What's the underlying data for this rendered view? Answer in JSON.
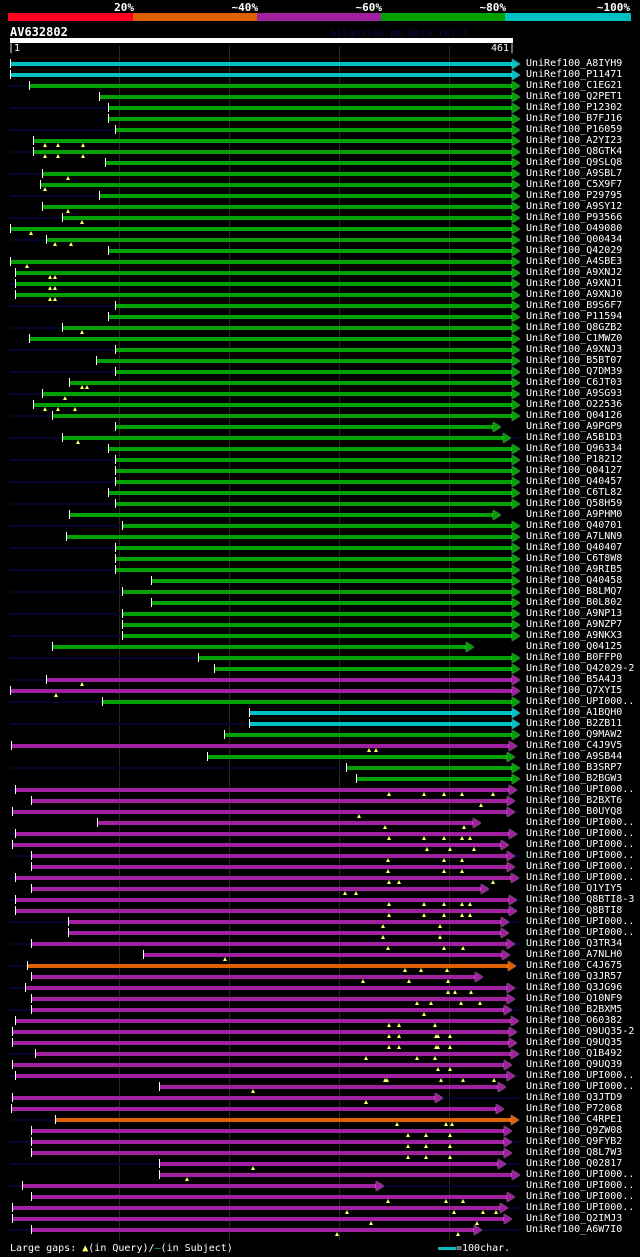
{
  "header": {
    "percent_labels": [
      "20%",
      "~40%",
      "~60%",
      "~80%",
      "~100%"
    ],
    "percent_colors": [
      "#ff0020",
      "#e06000",
      "#a020a0",
      "#00a000",
      "#00c0c0"
    ],
    "query_name": "AV632802",
    "version_text": "AlignView.pm Beta rel.7",
    "start_tick": "|1",
    "end_tick": "461|"
  },
  "query_length": 461,
  "colors": {
    "c": "#00c0c0",
    "g": "#00a000",
    "m": "#a020a0",
    "o": "#e06000",
    "guide": "#050530",
    "gap": "#ffff66"
  },
  "hits": [
    [
      "UniRef100_A8IYH9",
      "c",
      1,
      461,
      []
    ],
    [
      "UniRef100_P11471",
      "c",
      1,
      461,
      []
    ],
    [
      "UniRef100_C1EG21",
      "g",
      18,
      461,
      []
    ],
    [
      "UniRef100_Q2PET1",
      "g",
      82,
      461,
      []
    ],
    [
      "UniRef100_P12302",
      "g",
      91,
      461,
      []
    ],
    [
      "UniRef100_B7FJ16",
      "g",
      91,
      461,
      []
    ],
    [
      "UniRef100_P16059",
      "g",
      97,
      461,
      []
    ],
    [
      "UniRef100_A2YI23",
      "g",
      22,
      461,
      [
        33,
        45,
        68
      ]
    ],
    [
      "UniRef100_Q8GTK4",
      "g",
      22,
      461,
      [
        33,
        45,
        68
      ]
    ],
    [
      "UniRef100_Q9SLQ8",
      "g",
      88,
      461,
      []
    ],
    [
      "UniRef100_A9SBL7",
      "g",
      30,
      461,
      [
        54
      ]
    ],
    [
      "UniRef100_C5X9F7",
      "g",
      28,
      461,
      [
        33
      ]
    ],
    [
      "UniRef100_P29795",
      "g",
      82,
      461,
      []
    ],
    [
      "UniRef100_A9SY12",
      "g",
      30,
      461,
      [
        54
      ]
    ],
    [
      "UniRef100_P93566",
      "g",
      49,
      461,
      [
        67
      ]
    ],
    [
      "UniRef100_O49080",
      "g",
      1,
      461,
      [
        20
      ]
    ],
    [
      "UniRef100_Q00434",
      "g",
      34,
      461,
      [
        42,
        57
      ]
    ],
    [
      "UniRef100_Q42029",
      "g",
      91,
      461,
      []
    ],
    [
      "UniRef100_A4SBE3",
      "g",
      1,
      461,
      [
        17
      ]
    ],
    [
      "UniRef100_A9XNJ2",
      "g",
      6,
      461,
      [
        38,
        42
      ]
    ],
    [
      "UniRef100_A9XNJ1",
      "g",
      6,
      461,
      [
        38,
        42
      ]
    ],
    [
      "UniRef100_A9XNJ0",
      "g",
      6,
      461,
      [
        38,
        42
      ]
    ],
    [
      "UniRef100_B9S6F7",
      "g",
      97,
      461,
      []
    ],
    [
      "UniRef100_P11594",
      "g",
      91,
      461,
      []
    ],
    [
      "UniRef100_Q8GZB2",
      "g",
      49,
      461,
      [
        67
      ]
    ],
    [
      "UniRef100_C1MWZ0",
      "g",
      18,
      461,
      []
    ],
    [
      "UniRef100_A9XNJ3",
      "g",
      97,
      461,
      []
    ],
    [
      "UniRef100_B5BT07",
      "g",
      80,
      461,
      []
    ],
    [
      "UniRef100_Q7DM39",
      "g",
      97,
      461,
      []
    ],
    [
      "UniRef100_C6JT03",
      "g",
      55,
      461,
      [
        67,
        71
      ]
    ],
    [
      "UniRef100_A9SG93",
      "g",
      30,
      461,
      [
        51
      ]
    ],
    [
      "UniRef100_O22536",
      "g",
      22,
      461,
      [
        33,
        45,
        60
      ]
    ],
    [
      "UniRef100_Q04126",
      "g",
      39,
      461,
      []
    ],
    [
      "UniRef100_A9PGP9",
      "g",
      97,
      444,
      []
    ],
    [
      "UniRef100_A5B1D3",
      "g",
      49,
      453,
      [
        63
      ]
    ],
    [
      "UniRef100_Q96334",
      "g",
      91,
      461,
      []
    ],
    [
      "UniRef100_P18212",
      "g",
      97,
      461,
      []
    ],
    [
      "UniRef100_Q04127",
      "g",
      97,
      461,
      []
    ],
    [
      "UniRef100_Q40457",
      "g",
      97,
      461,
      []
    ],
    [
      "UniRef100_C6TL82",
      "g",
      91,
      461,
      []
    ],
    [
      "UniRef100_Q58H59",
      "g",
      97,
      461,
      []
    ],
    [
      "UniRef100_A9PHM0",
      "g",
      55,
      444,
      []
    ],
    [
      "UniRef100_Q40701",
      "g",
      103,
      461,
      []
    ],
    [
      "UniRef100_A7LNN9",
      "g",
      52,
      461,
      []
    ],
    [
      "UniRef100_Q40407",
      "g",
      97,
      461,
      []
    ],
    [
      "UniRef100_C6T8W8",
      "g",
      97,
      461,
      []
    ],
    [
      "UniRef100_A9RIB5",
      "g",
      97,
      461,
      []
    ],
    [
      "UniRef100_Q40458",
      "g",
      130,
      461,
      []
    ],
    [
      "UniRef100_B8LMQ7",
      "g",
      103,
      461,
      []
    ],
    [
      "UniRef100_B0L802",
      "g",
      130,
      461,
      []
    ],
    [
      "UniRef100_A9NP13",
      "g",
      103,
      461,
      []
    ],
    [
      "UniRef100_A9NZP7",
      "g",
      103,
      461,
      []
    ],
    [
      "UniRef100_A9NKX3",
      "g",
      103,
      461,
      []
    ],
    [
      "UniRef100_Q04125",
      "g",
      39,
      419,
      []
    ],
    [
      "UniRef100_B0FFP0",
      "g",
      173,
      461,
      []
    ],
    [
      "UniRef100_Q42029-2",
      "g",
      188,
      461,
      []
    ],
    [
      "UniRef100_B5A4J3",
      "m",
      34,
      461,
      [
        67
      ]
    ],
    [
      "UniRef100_Q7XYI5",
      "m",
      1,
      461,
      [
        43
      ]
    ],
    [
      "UniRef100_UPI000..",
      "g",
      85,
      461,
      []
    ],
    [
      "UniRef100_A1BQH0",
      "c",
      220,
      461,
      []
    ],
    [
      "UniRef100_B2ZB11",
      "c",
      220,
      461,
      []
    ],
    [
      "UniRef100_Q9MAW2",
      "g",
      197,
      461,
      []
    ],
    [
      "UniRef100_C4J9V5",
      "m",
      2,
      458,
      [
        329,
        336
      ]
    ],
    [
      "UniRef100_A9SB44",
      "g",
      181,
      456,
      []
    ],
    [
      "UniRef100_B3SRP7",
      "g",
      308,
      461,
      []
    ],
    [
      "UniRef100_B2BGW3",
      "g",
      317,
      461,
      []
    ],
    [
      "UniRef100_UPI000..",
      "m",
      6,
      458,
      [
        348,
        380,
        398,
        414,
        443
      ]
    ],
    [
      "UniRef100_B2BXT6",
      "m",
      20,
      456,
      [
        432
      ]
    ],
    [
      "UniRef100_B0UYQ8",
      "m",
      3,
      456,
      [
        320
      ]
    ],
    [
      "UniRef100_UPI000..",
      "m",
      81,
      425,
      [
        344,
        416
      ]
    ],
    [
      "UniRef100_UPI000..",
      "m",
      6,
      458,
      [
        348,
        380,
        398,
        414,
        422
      ]
    ],
    [
      "UniRef100_UPI000..",
      "m",
      3,
      451,
      [
        382,
        403,
        425
      ]
    ],
    [
      "UniRef100_UPI000..",
      "m",
      20,
      456,
      [
        347,
        398,
        414
      ]
    ],
    [
      "UniRef100_UPI000..",
      "m",
      20,
      456,
      [
        347,
        398,
        414
      ]
    ],
    [
      "UniRef100_UPI000..",
      "m",
      6,
      460,
      [
        348,
        357,
        443
      ]
    ],
    [
      "UniRef100_Q1YIY5",
      "m",
      20,
      433,
      [
        307,
        317
      ]
    ],
    [
      "UniRef100_Q8BTI8-3",
      "m",
      6,
      458,
      [
        348,
        380,
        398,
        414,
        422
      ]
    ],
    [
      "UniRef100_Q8BTI8",
      "m",
      6,
      458,
      [
        348,
        380,
        398,
        414,
        422
      ]
    ],
    [
      "UniRef100_UPI000..",
      "m",
      54,
      451,
      [
        342,
        394
      ]
    ],
    [
      "UniRef100_UPI000..",
      "m",
      54,
      451,
      [
        342,
        394
      ]
    ],
    [
      "UniRef100_Q3TR34",
      "m",
      20,
      456,
      [
        347,
        398,
        415
      ]
    ],
    [
      "UniRef100_A7NLH0",
      "m",
      123,
      452,
      [
        198
      ]
    ],
    [
      "UniRef100_C4J675",
      "o",
      17,
      457,
      [
        362,
        377,
        401
      ]
    ],
    [
      "UniRef100_Q3JR57",
      "m",
      20,
      427,
      [
        324,
        366,
        402
      ]
    ],
    [
      "UniRef100_Q3JG96",
      "m",
      15,
      456,
      [
        402,
        408,
        423
      ]
    ],
    [
      "UniRef100_Q10NF9",
      "m",
      20,
      456,
      [
        373,
        386,
        413,
        431
      ]
    ],
    [
      "UniRef100_B2BXM5",
      "m",
      20,
      454,
      [
        380
      ]
    ],
    [
      "UniRef100_O60382",
      "m",
      6,
      460,
      [
        348,
        357,
        390
      ]
    ],
    [
      "UniRef100_Q9UQ35-2",
      "m",
      3,
      458,
      [
        348,
        357,
        391,
        392,
        403
      ]
    ],
    [
      "UniRef100_Q9UQ35",
      "m",
      3,
      458,
      [
        348,
        357,
        391,
        392,
        403
      ]
    ],
    [
      "UniRef100_Q1B492",
      "m",
      24,
      460,
      [
        327,
        373,
        390
      ]
    ],
    [
      "UniRef100_Q9UQ39",
      "m",
      3,
      454,
      [
        392,
        403
      ]
    ],
    [
      "UniRef100_UPI000..",
      "m",
      6,
      456,
      [
        344,
        346,
        395,
        415,
        444
      ]
    ],
    [
      "UniRef100_UPI000..",
      "m",
      137,
      448,
      [
        223
      ]
    ],
    [
      "UniRef100_Q3JTD9",
      "m",
      3,
      391,
      [
        327
      ]
    ],
    [
      "UniRef100_P72068",
      "m",
      2,
      446,
      []
    ],
    [
      "UniRef100_C4RPE1",
      "o",
      42,
      460,
      [
        355,
        400,
        405
      ]
    ],
    [
      "UniRef100_Q9ZW08",
      "m",
      20,
      454,
      [
        365,
        381,
        403
      ]
    ],
    [
      "UniRef100_Q9FYB2",
      "m",
      20,
      454,
      [
        365,
        381,
        403
      ]
    ],
    [
      "UniRef100_Q8L7W3",
      "m",
      20,
      454,
      [
        365,
        381,
        403
      ]
    ],
    [
      "UniRef100_Q02817",
      "m",
      137,
      448,
      [
        223
      ]
    ],
    [
      "UniRef100_UPI000..",
      "m",
      137,
      461,
      [
        163
      ]
    ],
    [
      "UniRef100_UPI000..",
      "m",
      12,
      337,
      []
    ],
    [
      "UniRef100_UPI000..",
      "m",
      20,
      456,
      [
        347,
        400,
        415
      ]
    ],
    [
      "UniRef100_UPI000..",
      "m",
      3,
      450,
      [
        309,
        407,
        434,
        445
      ]
    ],
    [
      "UniRef100_Q2IMJ3",
      "m",
      3,
      454,
      [
        331,
        428
      ]
    ],
    [
      "UniRef100_A6W7I0",
      "m",
      20,
      426,
      [
        300,
        411
      ]
    ]
  ],
  "footer": {
    "legend_text": "Large gaps: ",
    "query_gap_text": "(in Query)/",
    "subject_gap_text": "(in Subject)",
    "scale_text": "=100char."
  }
}
